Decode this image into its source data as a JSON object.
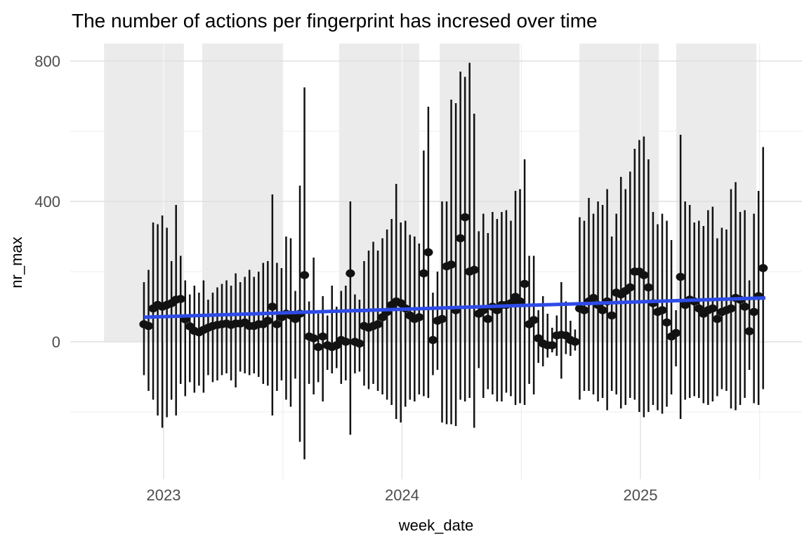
{
  "chart_data": {
    "type": "pointrange",
    "title": "The number of actions per fingerprint has incresed over time",
    "xlabel": "week_date",
    "ylabel": "nr_max",
    "x_tick_labels": [
      "2023",
      "2024",
      "2025"
    ],
    "x_tick_years": [
      2023,
      2024,
      2025
    ],
    "x_minor_years": [
      2023.5,
      2024.5,
      2025.5
    ],
    "y_tick_labels": [
      "0",
      "400",
      "800"
    ],
    "y_ticks": [
      0,
      400,
      800
    ],
    "y_minor_ticks": [
      -200,
      200,
      600
    ],
    "ylim": [
      -390,
      850
    ],
    "xlim_years": [
      2022.61,
      2025.68
    ],
    "grid": "on",
    "legend": "none",
    "shaded_periods_years": [
      [
        2022.75,
        2023.085
      ],
      [
        2023.162,
        2023.498
      ],
      [
        2023.736,
        2024.072
      ],
      [
        2024.158,
        2024.493
      ],
      [
        2024.744,
        2025.077
      ],
      [
        2025.15,
        2025.486
      ]
    ],
    "shading_spans_values": [
      0,
      850
    ],
    "trend_line": {
      "description": "linear smooth, rising left to right",
      "x1_year": 2022.9175,
      "v1": 70,
      "x2_year": 2025.524,
      "v2": 125
    },
    "series_start_year": 2022.9175,
    "week_step_years": 0.019237,
    "points_format": [
      "point",
      "low",
      "high"
    ],
    "points": [
      [
        50,
        -95,
        170
      ],
      [
        45,
        -140,
        205
      ],
      [
        95,
        -165,
        340
      ],
      [
        105,
        -210,
        335
      ],
      [
        100,
        -245,
        360
      ],
      [
        105,
        -215,
        325
      ],
      [
        110,
        -165,
        230
      ],
      [
        120,
        -210,
        390
      ],
      [
        122,
        -120,
        245
      ],
      [
        64,
        -155,
        175
      ],
      [
        44,
        -115,
        135
      ],
      [
        31,
        -145,
        160
      ],
      [
        27,
        -125,
        140
      ],
      [
        34,
        -145,
        175
      ],
      [
        40,
        -95,
        120
      ],
      [
        45,
        -115,
        140
      ],
      [
        48,
        -110,
        155
      ],
      [
        50,
        -95,
        165
      ],
      [
        52,
        -90,
        175
      ],
      [
        48,
        -110,
        160
      ],
      [
        52,
        -130,
        195
      ],
      [
        52,
        -85,
        170
      ],
      [
        55,
        -90,
        185
      ],
      [
        45,
        -95,
        205
      ],
      [
        45,
        -90,
        185
      ],
      [
        50,
        -100,
        200
      ],
      [
        50,
        -120,
        225
      ],
      [
        60,
        -125,
        230
      ],
      [
        100,
        -210,
        420
      ],
      [
        50,
        -140,
        225
      ],
      [
        70,
        -110,
        210
      ],
      [
        80,
        -165,
        300
      ],
      [
        75,
        -185,
        295
      ],
      [
        65,
        -105,
        145
      ],
      [
        80,
        -285,
        445
      ],
      [
        190,
        -335,
        725
      ],
      [
        15,
        -120,
        115
      ],
      [
        10,
        -150,
        240
      ],
      [
        -15,
        -115,
        80
      ],
      [
        15,
        -170,
        130
      ],
      [
        -10,
        -80,
        75
      ],
      [
        -15,
        -90,
        160
      ],
      [
        -10,
        -75,
        100
      ],
      [
        5,
        -120,
        145
      ],
      [
        0,
        -110,
        160
      ],
      [
        195,
        -265,
        400
      ],
      [
        0,
        -90,
        135
      ],
      [
        -5,
        -85,
        120
      ],
      [
        45,
        -125,
        230
      ],
      [
        40,
        -135,
        260
      ],
      [
        45,
        -120,
        285
      ],
      [
        50,
        -140,
        260
      ],
      [
        70,
        -150,
        295
      ],
      [
        85,
        -165,
        320
      ],
      [
        105,
        -180,
        350
      ],
      [
        115,
        -220,
        450
      ],
      [
        110,
        -230,
        340
      ],
      [
        95,
        -185,
        345
      ],
      [
        75,
        -165,
        305
      ],
      [
        65,
        -170,
        300
      ],
      [
        70,
        -150,
        280
      ],
      [
        195,
        -155,
        545
      ],
      [
        255,
        -160,
        670
      ],
      [
        5,
        -95,
        140
      ],
      [
        60,
        -80,
        200
      ],
      [
        65,
        -230,
        400
      ],
      [
        215,
        -235,
        400
      ],
      [
        220,
        -235,
        690
      ],
      [
        90,
        -240,
        680
      ],
      [
        295,
        -165,
        770
      ],
      [
        355,
        -170,
        755
      ],
      [
        200,
        -160,
        795
      ],
      [
        205,
        -245,
        650
      ],
      [
        80,
        -75,
        315
      ],
      [
        90,
        -160,
        365
      ],
      [
        65,
        -135,
        310
      ],
      [
        100,
        -150,
        370
      ],
      [
        90,
        -170,
        350
      ],
      [
        105,
        -170,
        370
      ],
      [
        105,
        -145,
        375
      ],
      [
        110,
        -155,
        345
      ],
      [
        128,
        -180,
        430
      ],
      [
        115,
        -175,
        435
      ],
      [
        165,
        -180,
        520
      ],
      [
        50,
        -120,
        245
      ],
      [
        62,
        -150,
        245
      ],
      [
        10,
        -60,
        90
      ],
      [
        -5,
        -70,
        130
      ],
      [
        -10,
        -45,
        80
      ],
      [
        -10,
        -30,
        40
      ],
      [
        18,
        -40,
        75
      ],
      [
        20,
        -105,
        170
      ],
      [
        18,
        -35,
        115
      ],
      [
        5,
        -40,
        60
      ],
      [
        0,
        -25,
        35
      ],
      [
        95,
        -165,
        355
      ],
      [
        90,
        -140,
        345
      ],
      [
        115,
        -140,
        410
      ],
      [
        125,
        -150,
        365
      ],
      [
        105,
        -170,
        400
      ],
      [
        90,
        -160,
        390
      ],
      [
        115,
        -195,
        435
      ],
      [
        75,
        -140,
        300
      ],
      [
        140,
        -150,
        365
      ],
      [
        135,
        -190,
        470
      ],
      [
        145,
        -180,
        435
      ],
      [
        155,
        -160,
        485
      ],
      [
        200,
        -165,
        550
      ],
      [
        200,
        -200,
        575
      ],
      [
        190,
        -215,
        585
      ],
      [
        155,
        -200,
        520
      ],
      [
        110,
        -180,
        370
      ],
      [
        85,
        -195,
        335
      ],
      [
        90,
        -205,
        365
      ],
      [
        55,
        -185,
        345
      ],
      [
        15,
        -150,
        290
      ],
      [
        25,
        -70,
        90
      ],
      [
        185,
        -220,
        590
      ],
      [
        105,
        -165,
        400
      ],
      [
        120,
        -160,
        390
      ],
      [
        115,
        -155,
        340
      ],
      [
        95,
        -160,
        345
      ],
      [
        80,
        -175,
        330
      ],
      [
        90,
        -180,
        375
      ],
      [
        95,
        -170,
        385
      ],
      [
        65,
        -155,
        295
      ],
      [
        85,
        -135,
        325
      ],
      [
        90,
        -140,
        320
      ],
      [
        95,
        -190,
        435
      ],
      [
        125,
        -195,
        455
      ],
      [
        120,
        -180,
        370
      ],
      [
        100,
        -160,
        375
      ],
      [
        30,
        -80,
        175
      ],
      [
        85,
        -175,
        365
      ],
      [
        130,
        -180,
        430
      ],
      [
        210,
        -135,
        555
      ]
    ]
  },
  "colors": {
    "background": "#ffffff",
    "band_fill": "#ebebeb",
    "grid_major": "#dfdfdf",
    "grid_minor": "#ededed",
    "grid_major_on_band": "rgba(255,255,255,0.6)",
    "point_and_range": "#121212",
    "trend_blue": "#2e4be8",
    "tick_label": "#4d4d4d",
    "title_text": "#000000"
  }
}
